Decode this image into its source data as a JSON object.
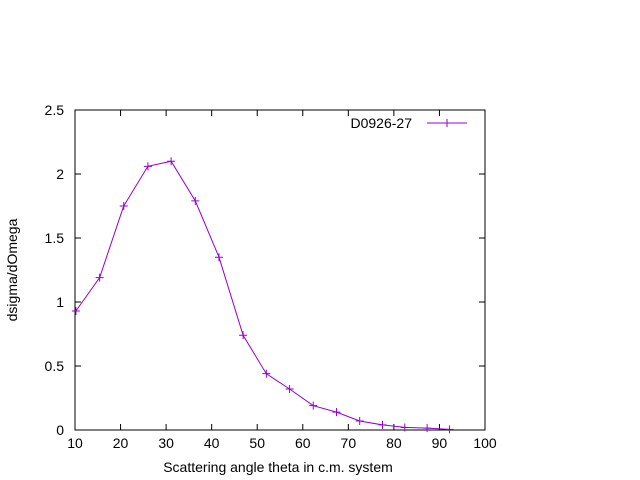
{
  "chart_data": {
    "type": "line",
    "xlabel": "Scattering angle theta in c.m. system",
    "ylabel": "dsigma/dOmega",
    "xlim": [
      10,
      100
    ],
    "ylim": [
      0,
      2.5
    ],
    "xticks": [
      10,
      20,
      30,
      40,
      50,
      60,
      70,
      80,
      90,
      100
    ],
    "yticks": [
      0,
      0.5,
      1,
      1.5,
      2,
      2.5
    ],
    "xtick_labels": [
      "10",
      "20",
      "30",
      "40",
      "50",
      "60",
      "70",
      "80",
      "90",
      "100"
    ],
    "ytick_labels": [
      "0",
      "0.5",
      "1",
      "1.5",
      "2",
      "2.5"
    ],
    "grid": false,
    "legend_position": "top-right",
    "series": [
      {
        "name": "D0926-27",
        "color": "#9400d3",
        "marker": "plus",
        "x": [
          10.2,
          15.4,
          20.7,
          26.0,
          31.1,
          36.4,
          41.6,
          46.9,
          52.0,
          57.1,
          62.3,
          67.4,
          72.5,
          77.5,
          82.4,
          87.3,
          92.2
        ],
        "y": [
          0.93,
          1.19,
          1.75,
          2.06,
          2.1,
          1.79,
          1.35,
          0.74,
          0.44,
          0.32,
          0.19,
          0.14,
          0.07,
          0.04,
          0.02,
          0.015,
          0.005
        ]
      }
    ]
  }
}
